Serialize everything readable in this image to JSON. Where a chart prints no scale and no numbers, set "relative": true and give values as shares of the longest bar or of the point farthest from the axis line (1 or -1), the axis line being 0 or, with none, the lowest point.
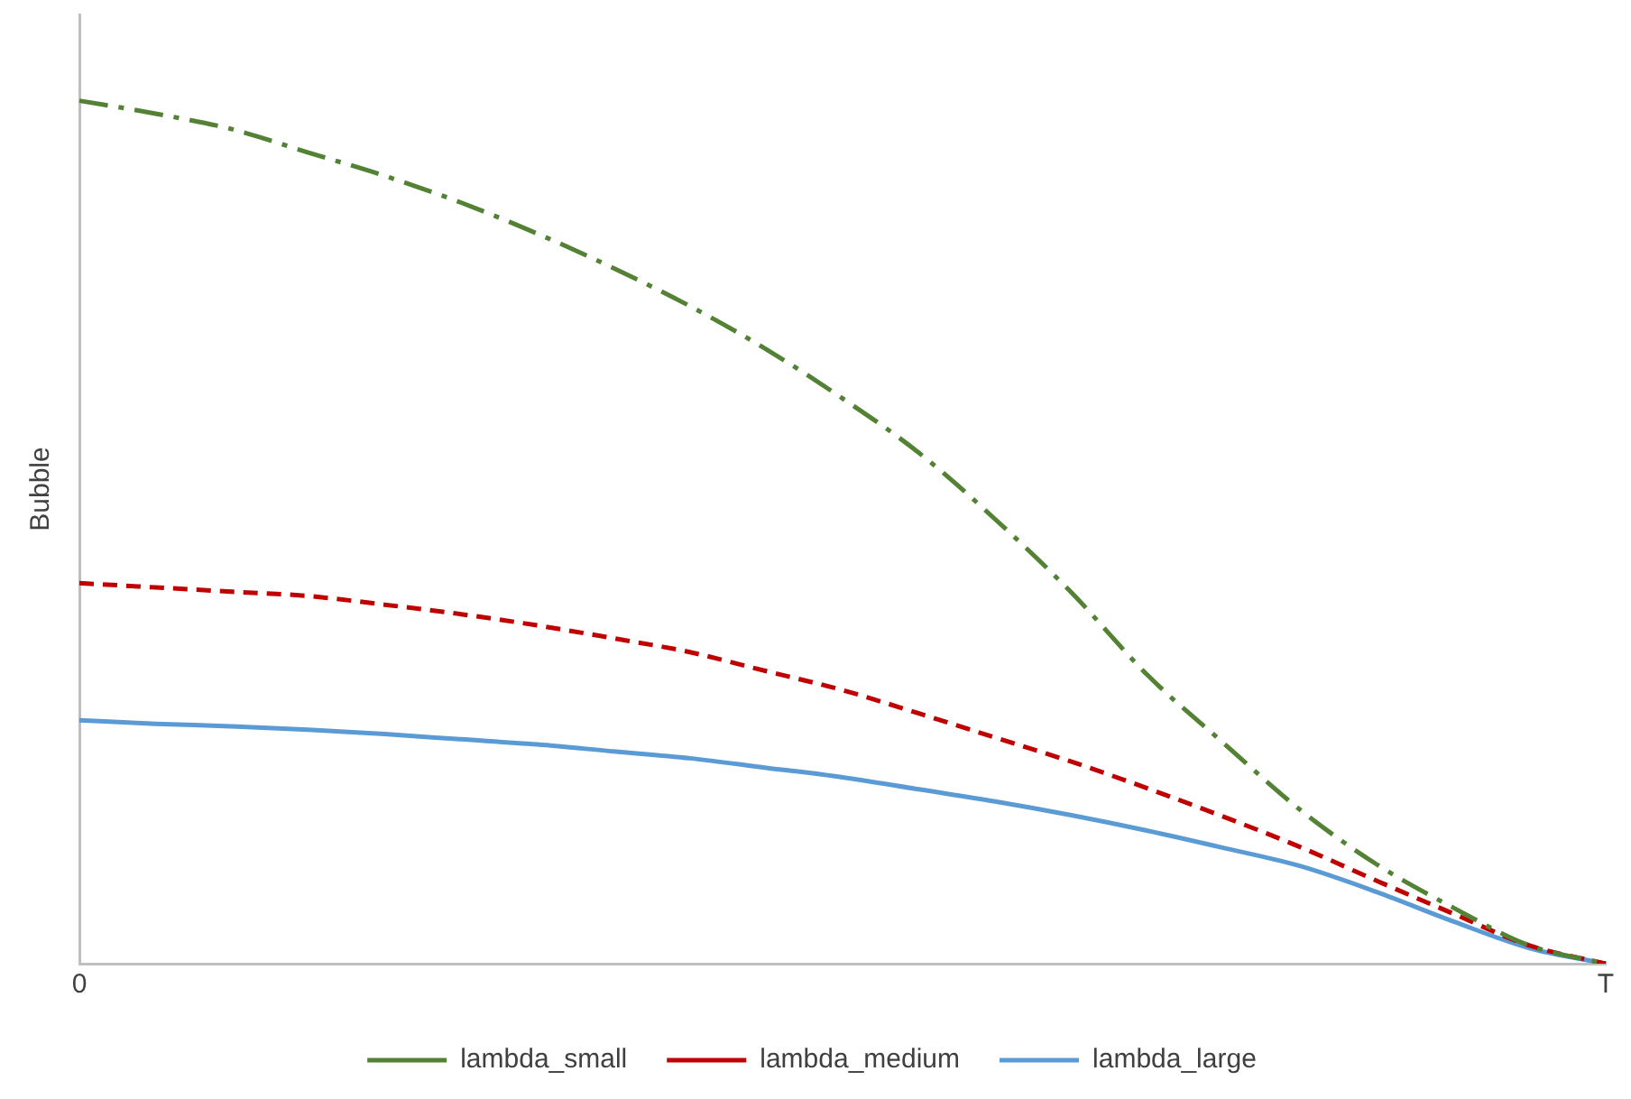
{
  "chart_data": {
    "type": "line",
    "relative": true,
    "ylabel": "Bubble",
    "categories": [
      "0",
      null,
      null,
      null,
      null,
      null,
      null,
      null,
      null,
      null,
      null,
      null,
      null,
      null,
      null,
      null,
      null,
      null,
      null,
      null,
      "T"
    ],
    "tick_labels": "x",
    "grid": false,
    "legend": "bottom",
    "marker": "none",
    "series": [
      {
        "name": "lambda_small",
        "color": "#548235",
        "line_style": "dotted",
        "values": [
          1,
          0.985,
          0.967,
          0.94,
          0.913,
          0.882,
          0.846,
          0.806,
          0.762,
          0.712,
          0.655,
          0.592,
          0.515,
          0.43,
          0.334,
          0.255,
          0.178,
          0.115,
          0.065,
          0.021,
          0
        ]
      },
      {
        "name": "lambda_medium",
        "color": "#c00000",
        "line_style": "dashed",
        "values": [
          0.441,
          0.436,
          0.431,
          0.426,
          0.416,
          0.405,
          0.392,
          0.377,
          0.361,
          0.339,
          0.317,
          0.29,
          0.262,
          0.234,
          0.203,
          0.17,
          0.135,
          0.096,
          0.058,
          0.021,
          0
        ]
      },
      {
        "name": "lambda_large",
        "color": "#5b9bd5",
        "line_style": "solid",
        "values": [
          0.282,
          0.278,
          0.275,
          0.271,
          0.266,
          0.26,
          0.254,
          0.246,
          0.238,
          0.227,
          0.216,
          0.202,
          0.188,
          0.172,
          0.154,
          0.134,
          0.113,
          0.083,
          0.049,
          0.018,
          0
        ]
      }
    ]
  }
}
